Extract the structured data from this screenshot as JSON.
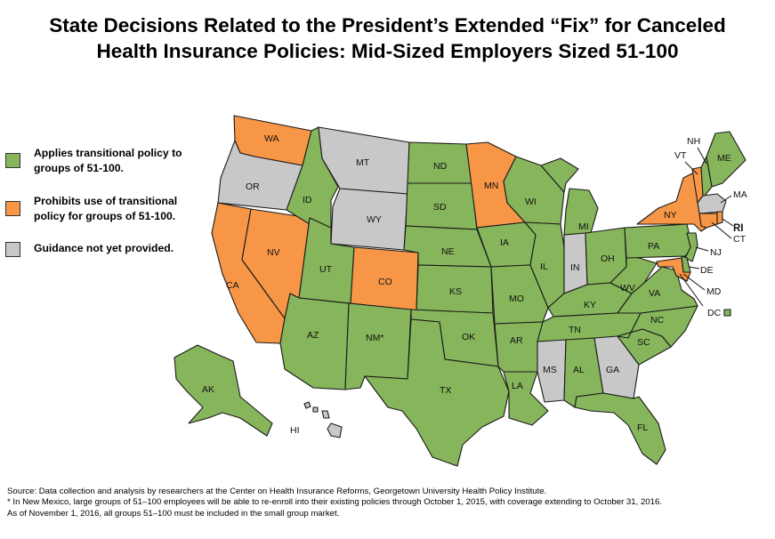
{
  "title": {
    "line1": "State Decisions Related to the President’s Extended “Fix” for Canceled",
    "line2": "Health Insurance Policies: Mid-Sized Employers Sized 51-100"
  },
  "colors": {
    "applies": "#86b55b",
    "prohibits": "#f79646",
    "no_guidance": "#c8c8c8"
  },
  "legend": [
    {
      "category": "applies",
      "label": "Applies transitional policy to groups of 51-100."
    },
    {
      "category": "prohibits",
      "label": "Prohibits use of transitional policy for groups of 51-100."
    },
    {
      "category": "no_guidance",
      "label": "Guidance not yet provided."
    }
  ],
  "states": {
    "WA": "prohibits",
    "OR": "no_guidance",
    "CA": "prohibits",
    "NV": "prohibits",
    "ID": "applies",
    "MT": "no_guidance",
    "WY": "no_guidance",
    "UT": "applies",
    "AZ": "applies",
    "CO": "prohibits",
    "NM": "applies",
    "ND": "applies",
    "SD": "applies",
    "NE": "applies",
    "KS": "applies",
    "OK": "applies",
    "TX": "applies",
    "MN": "prohibits",
    "IA": "applies",
    "MO": "applies",
    "AR": "applies",
    "LA": "applies",
    "WI": "applies",
    "IL": "applies",
    "MI": "applies",
    "IN": "no_guidance",
    "OH": "applies",
    "KY": "applies",
    "TN": "applies",
    "MS": "no_guidance",
    "AL": "applies",
    "GA": "no_guidance",
    "FL": "applies",
    "SC": "applies",
    "NC": "applies",
    "VA": "applies",
    "WV": "applies",
    "PA": "applies",
    "NY": "prohibits",
    "VT": "prohibits",
    "NH": "applies",
    "ME": "applies",
    "MA": "no_guidance",
    "RI": "prohibits",
    "CT": "prohibits",
    "NJ": "applies",
    "DE": "applies",
    "MD": "prohibits",
    "DC": "applies",
    "AK": "applies",
    "HI": "no_guidance"
  },
  "state_labels": {
    "WA": "WA",
    "OR": "OR",
    "CA": "CA",
    "NV": "NV",
    "ID": "ID",
    "MT": "MT",
    "WY": "WY",
    "UT": "UT",
    "AZ": "AZ",
    "CO": "CO",
    "NM": "NM*",
    "ND": "ND",
    "SD": "SD",
    "NE": "NE",
    "KS": "KS",
    "OK": "OK",
    "TX": "TX",
    "MN": "MN",
    "IA": "IA",
    "MO": "MO",
    "AR": "AR",
    "LA": "LA",
    "WI": "WI",
    "IL": "IL",
    "MI": "MI",
    "IN": "IN",
    "OH": "OH",
    "KY": "KY",
    "TN": "TN",
    "MS": "MS",
    "AL": "AL",
    "GA": "GA",
    "FL": "FL",
    "SC": "SC",
    "NC": "NC",
    "VA": "VA",
    "WV": "WV",
    "PA": "PA",
    "NY": "NY",
    "VT": "VT",
    "NH": "NH",
    "ME": "ME",
    "MA": "MA",
    "RI": "RI",
    "CT": "CT",
    "NJ": "NJ",
    "DE": "DE",
    "MD": "MD",
    "DC": "DC",
    "AK": "AK",
    "HI": "HI"
  },
  "footer": {
    "source": "Source: Data collection and analysis by researchers at the Center on Health Insurance Reforms, Georgetown University Health Policy Institute.",
    "note1": "*  In New Mexico, large groups of 51–100 employees will be able to re-enroll into their existing policies through October 1, 2015, with coverage extending to October  31, 2016.",
    "note2": "As of November 1, 2016, all groups 51–100 must be included in the small group market."
  }
}
